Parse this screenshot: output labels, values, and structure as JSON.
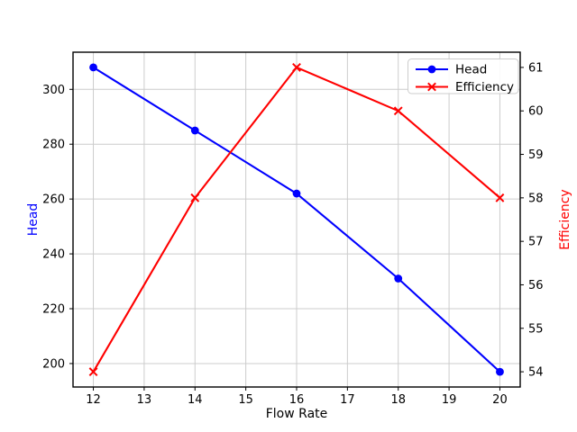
{
  "figure": {
    "background": "#ffffff"
  },
  "chart_data": {
    "type": "line",
    "x": [
      12,
      14,
      16,
      18,
      20
    ],
    "series": [
      {
        "name": "Head",
        "axis": "left",
        "color": "#0000ff",
        "marker": "circle",
        "values": [
          308,
          285,
          262,
          231,
          197
        ]
      },
      {
        "name": "Efficiency",
        "axis": "right",
        "color": "#ff0000",
        "marker": "x",
        "values": [
          54,
          58,
          61,
          60,
          58
        ]
      }
    ],
    "title": "",
    "xlabel": "Flow Rate",
    "ylabel_left": "Head",
    "ylabel_right": "Efficiency",
    "xlim": [
      11.6,
      20.4
    ],
    "ylim_left": [
      191.45,
      313.55
    ],
    "ylim_right": [
      53.65,
      61.35
    ],
    "xticks": [
      "12",
      "13",
      "14",
      "15",
      "16",
      "17",
      "18",
      "19",
      "20"
    ],
    "yticks_left": [
      "200",
      "220",
      "240",
      "260",
      "280",
      "300"
    ],
    "yticks_right": [
      "54",
      "55",
      "56",
      "57",
      "58",
      "59",
      "60",
      "61"
    ],
    "grid": true,
    "legend": {
      "position": "upper right",
      "entries": [
        "Head",
        "Efficiency"
      ]
    },
    "colors": {
      "grid": "#cccccc",
      "spine": "#000000",
      "tick_label": "#000000",
      "legend_border": "#cccccc",
      "legend_bg": "#ffffff",
      "axis_label_left": "#0000ff",
      "axis_label_right": "#ff0000"
    }
  }
}
